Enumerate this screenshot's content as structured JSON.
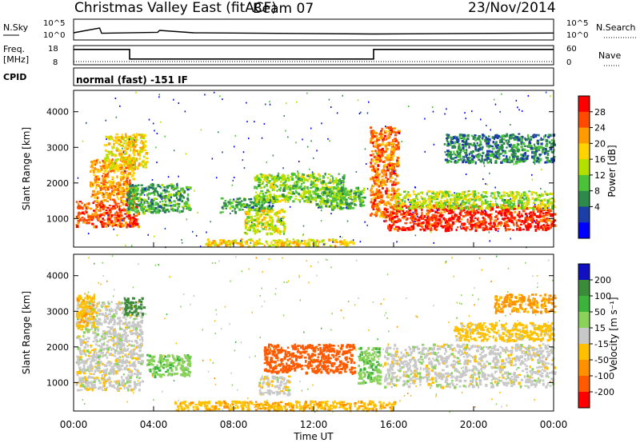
{
  "header": {
    "title": "Christmas Valley East (fitACF)",
    "beam": "Beam 07",
    "date": "23/Nov/2014"
  },
  "panels": {
    "nsky": {
      "label": "N.Sky",
      "tick_top": "10^5",
      "tick_bottom": "10^0"
    },
    "nsearch": {
      "label": "N.Search",
      "tick_top": "10^5",
      "tick_bottom": "10^0"
    },
    "freq": {
      "label_line1": "Freq.",
      "label_line2": "[MHz]",
      "tick_top": "18",
      "tick_bottom": "8"
    },
    "nave": {
      "label": "Nave",
      "tick_top": "60",
      "tick_bottom": "0"
    },
    "cpid": {
      "label": "CPID",
      "mode": "normal (fast) -151 IF"
    }
  },
  "colorbars": {
    "power": {
      "label": "Power [dB]",
      "ticks": [
        "28",
        "24",
        "20",
        "16",
        "12",
        "8",
        "4"
      ],
      "colors": [
        "#ff0000",
        "#ff4a00",
        "#ff9a00",
        "#ffd200",
        "#b4e000",
        "#4cc23a",
        "#2e8a4a",
        "#1b3fa6",
        "#0000ff"
      ]
    },
    "velocity": {
      "label": "Velocity [m s⁻¹]",
      "ticks": [
        "200",
        "100",
        "50",
        "15",
        "-15",
        "-50",
        "-100",
        "-200"
      ],
      "colors": [
        "#1010c0",
        "#3a8c3a",
        "#3cb43c",
        "#8ad25a",
        "#c8c8c8",
        "#ffc000",
        "#ff9000",
        "#ff5a00",
        "#ff0000"
      ]
    }
  },
  "chart_data": [
    {
      "type": "heatmap",
      "name": "power",
      "ylabel": "Slant Range [km]",
      "yticks": [
        "1000",
        "2000",
        "3000",
        "4000"
      ],
      "ylim": [
        200,
        4600
      ],
      "xlim": [
        0,
        24
      ],
      "grid": false,
      "blobs": [
        {
          "t0": 0.1,
          "t1": 3.2,
          "r0": 800,
          "r1": 1500,
          "v": 26
        },
        {
          "t0": 0.8,
          "t1": 3.0,
          "r0": 1500,
          "r1": 2700,
          "v": 22
        },
        {
          "t0": 1.5,
          "t1": 3.6,
          "r0": 2400,
          "r1": 3400,
          "v": 18
        },
        {
          "t0": 2.6,
          "t1": 5.8,
          "r0": 1200,
          "r1": 2000,
          "v": 8
        },
        {
          "t0": 7.3,
          "t1": 10.0,
          "r0": 1200,
          "r1": 1600,
          "v": 8
        },
        {
          "t0": 8.5,
          "t1": 10.5,
          "r0": 600,
          "r1": 1300,
          "v": 16
        },
        {
          "t0": 9.0,
          "t1": 13.5,
          "r0": 1500,
          "r1": 2300,
          "v": 12
        },
        {
          "t0": 12.0,
          "t1": 14.5,
          "r0": 1300,
          "r1": 1900,
          "v": 10
        },
        {
          "t0": 14.8,
          "t1": 16.2,
          "r0": 1100,
          "r1": 3600,
          "v": 24
        },
        {
          "t0": 15.5,
          "t1": 24.0,
          "r0": 700,
          "r1": 1400,
          "v": 28
        },
        {
          "t0": 16.0,
          "t1": 24.0,
          "r0": 1300,
          "r1": 1800,
          "v": 14
        },
        {
          "t0": 18.5,
          "t1": 24.0,
          "r0": 2600,
          "r1": 3400,
          "v": 6
        },
        {
          "t0": 6.5,
          "t1": 14.0,
          "r0": 250,
          "r1": 450,
          "v": 18
        }
      ]
    },
    {
      "type": "heatmap",
      "name": "velocity",
      "ylabel": "Slant Range [km]",
      "yticks": [
        "1000",
        "2000",
        "3000",
        "4000"
      ],
      "ylim": [
        200,
        4600
      ],
      "xlim": [
        0,
        24
      ],
      "xlabel": "Time UT",
      "xticks": [
        "00:00",
        "04:00",
        "08:00",
        "12:00",
        "16:00",
        "20:00",
        "00:00"
      ],
      "grid": false,
      "blobs": [
        {
          "t0": 0.1,
          "t1": 3.4,
          "r0": 800,
          "r1": 3300,
          "v": 0
        },
        {
          "t0": 0.1,
          "t1": 1.0,
          "r0": 2600,
          "r1": 3500,
          "v": -40
        },
        {
          "t0": 2.5,
          "t1": 3.5,
          "r0": 2900,
          "r1": 3400,
          "v": 160
        },
        {
          "t0": 3.6,
          "t1": 5.8,
          "r0": 1200,
          "r1": 1800,
          "v": 40
        },
        {
          "t0": 9.5,
          "t1": 14.0,
          "r0": 1300,
          "r1": 2100,
          "v": -150
        },
        {
          "t0": 9.2,
          "t1": 10.8,
          "r0": 700,
          "r1": 1200,
          "v": 0
        },
        {
          "t0": 14.2,
          "t1": 15.3,
          "r0": 1000,
          "r1": 2000,
          "v": 40
        },
        {
          "t0": 15.5,
          "t1": 24.0,
          "r0": 900,
          "r1": 2100,
          "v": 0
        },
        {
          "t0": 19.0,
          "t1": 24.0,
          "r0": 2200,
          "r1": 2700,
          "v": -30
        },
        {
          "t0": 21.0,
          "t1": 24.0,
          "r0": 3000,
          "r1": 3500,
          "v": -60
        },
        {
          "t0": 5.0,
          "t1": 16.0,
          "r0": 250,
          "r1": 500,
          "v": -40
        }
      ]
    }
  ],
  "nsky_series": [
    [
      0,
      1
    ],
    [
      1.3,
      3
    ],
    [
      1.4,
      0.8
    ],
    [
      4.2,
      1.2
    ],
    [
      4.3,
      2
    ],
    [
      6,
      1
    ],
    [
      15,
      0.5
    ],
    [
      24,
      0.9
    ]
  ],
  "freq_series": [
    [
      0,
      16
    ],
    [
      2.8,
      16
    ],
    [
      2.8,
      11
    ],
    [
      15.0,
      11
    ],
    [
      15.0,
      16
    ],
    [
      24,
      16
    ]
  ],
  "nave_level": 10
}
